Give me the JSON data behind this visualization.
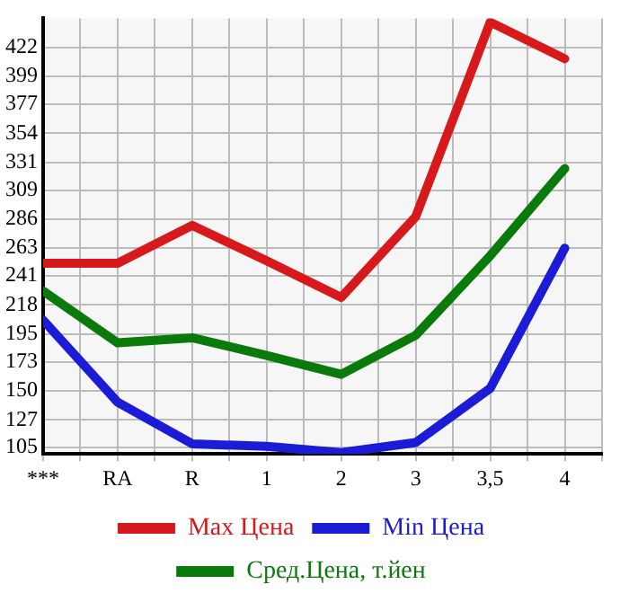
{
  "chart_data": {
    "type": "line",
    "categories": [
      "***",
      "RA",
      "R",
      "1",
      "2",
      "3",
      "3,5",
      "4"
    ],
    "series": [
      {
        "name": "Max Цена",
        "color": "#d7191c",
        "values": [
          251,
          251,
          281,
          253,
          224,
          288,
          442,
          413
        ]
      },
      {
        "name": "Min Цена",
        "color": "#1c1cd7",
        "values": [
          206,
          141,
          108,
          106,
          101,
          109,
          152,
          263
        ]
      },
      {
        "name": "Сред.Цена, т.йен",
        "color": "#0a7a0a",
        "values": [
          229,
          188,
          192,
          178,
          163,
          194,
          257,
          326
        ]
      }
    ],
    "ylim": [
      100,
      445
    ],
    "yticks": [
      105,
      127,
      150,
      173,
      195,
      218,
      241,
      263,
      286,
      309,
      331,
      354,
      377,
      399,
      422
    ],
    "grid": true,
    "legend": "bottom",
    "marker": "none",
    "line_style": "solid"
  }
}
